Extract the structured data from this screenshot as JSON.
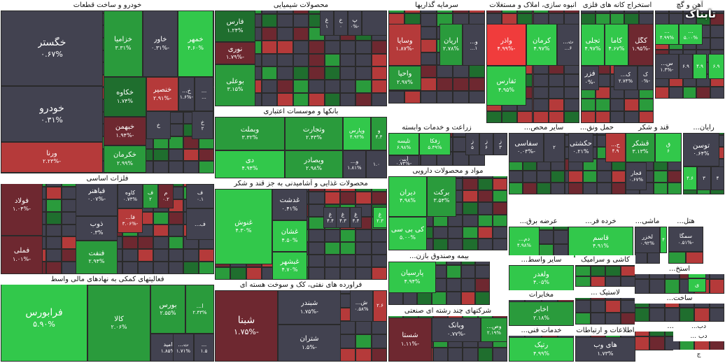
{
  "logo_text": "تابناک",
  "colors": {
    "dk": "#424250",
    "lg": "#32c84b",
    "mg": "#2a9b3c",
    "dg": "#1f6e2e",
    "lr": "#b53a3a",
    "dr": "#6e2830",
    "br": "#f03c3c"
  },
  "sectors": [
    {
      "name": "خودرو و ساخت قطعات",
      "tiles": [
        {
          "n": "خگستر",
          "p": "۰.۶۷%",
          "c": "dk",
          "s": "L"
        },
        {
          "n": "خودرو",
          "p": "۰.۳۱%",
          "c": "dk",
          "s": "L"
        },
        {
          "n": "ورنا",
          "p": "-۲.۲۳%",
          "c": "lr",
          "s": "S"
        },
        {
          "n": "خزامیا",
          "p": "۳.۳۱%",
          "c": "mg",
          "s": "S"
        },
        {
          "n": "خاور",
          "p": "-۰.۳۱%",
          "c": "dk",
          "s": "S"
        },
        {
          "n": "خمهر",
          "p": "۴.۶۰%",
          "c": "lg",
          "s": "S"
        },
        {
          "n": "خکاوه",
          "p": "۱.۷۴%",
          "c": "dg",
          "s": "S"
        },
        {
          "n": "خنصیر",
          "p": "-۲.۹۱%",
          "c": "lr",
          "s": "S"
        },
        {
          "n": "خ...",
          "p": "-۱.۶%",
          "c": "dk",
          "s": "XS"
        },
        {
          "n": "...",
          "p": "...",
          "c": "dk",
          "s": "XS"
        },
        {
          "n": "خبهمن",
          "p": "-۱.۹۴%",
          "c": "dr",
          "s": "S"
        },
        {
          "n": "خ",
          "p": "",
          "c": "dk",
          "s": "XS"
        },
        {
          "n": "خ",
          "p": "۲",
          "c": "dk",
          "s": "XS"
        },
        {
          "n": "خکرمان",
          "p": "۲.۹۹%",
          "c": "mg",
          "s": "S"
        }
      ]
    },
    {
      "name": "محصولات شیمیایی",
      "tiles": [
        {
          "n": "فارس",
          "p": "۱.۲۴%",
          "c": "dg",
          "s": "S"
        },
        {
          "n": "نوری",
          "p": "-۱.۷۹%",
          "c": "dr",
          "s": "S"
        },
        {
          "n": "بوعلی",
          "p": "۳.۱۵%",
          "c": "mg",
          "s": "S"
        },
        {
          "n": "پ",
          "p": "-۰%",
          "c": "dk",
          "s": "XS"
        },
        {
          "n": "خ",
          "p": "۰",
          "c": "dk",
          "s": "XS"
        },
        {
          "n": "غ",
          "p": "۱",
          "c": "dk",
          "s": "XS"
        },
        {
          "n": "",
          "p": "",
          "c": "dk",
          "s": "XS"
        }
      ]
    },
    {
      "name": "سرمایه گذاریها",
      "tiles": [
        {
          "n": "وسایا",
          "p": "-۱.۸۷%",
          "c": "lr",
          "s": "S"
        },
        {
          "n": "آریان",
          "p": "۲.۷۸%",
          "c": "mg",
          "s": "S"
        },
        {
          "n": "و...",
          "p": "۱...",
          "c": "dk",
          "s": "XS"
        },
        {
          "n": "واحیا",
          "p": "۲.۹۷%",
          "c": "mg",
          "s": "S"
        }
      ]
    },
    {
      "name": "انبوه سازی، املاک و مستغلات",
      "tiles": [
        {
          "n": "واذر",
          "p": "-۴.۹۹%",
          "c": "br",
          "s": "S"
        },
        {
          "n": "کرمان",
          "p": "۴.۹۷%",
          "c": "lg",
          "s": "S"
        },
        {
          "n": "ث...",
          "p": "۶...",
          "c": "dk",
          "s": "XS"
        },
        {
          "n": "ثفارس",
          "p": "۴.۹۵%",
          "c": "lg",
          "s": "S"
        }
      ]
    },
    {
      "name": "استخراج کانه های فلزی",
      "tiles": [
        {
          "n": "تجلی",
          "p": "۴.۹۷%",
          "c": "lg",
          "s": "S"
        },
        {
          "n": "کاما",
          "p": "۴.۶۷%",
          "c": "lg",
          "s": "S"
        },
        {
          "n": "کگل",
          "p": "-۱.۹۵%",
          "c": "dr",
          "s": "S"
        },
        {
          "n": "فزر",
          "p": "-۰%",
          "c": "dk",
          "s": "S"
        },
        {
          "n": "ک...",
          "p": "۲.۷۴%",
          "c": "dk",
          "s": "XS"
        },
        {
          "n": "ک",
          "p": "-۰%",
          "c": "dk",
          "s": "XS"
        }
      ]
    },
    {
      "name": "آهن و گچ",
      "tiles": [
        {
          "n": "...",
          "p": "۴.۹۹%",
          "c": "lg",
          "s": "XS"
        },
        {
          "n": "...",
          "p": "۵.۰۰%",
          "c": "lg",
          "s": "XS"
        },
        {
          "n": "س...",
          "p": "-۱.۳%",
          "c": "dk",
          "s": "XS"
        },
        {
          "n": "",
          "p": "۶.۹",
          "c": "dk",
          "s": "XS"
        },
        {
          "n": "",
          "p": "۴.۹",
          "c": "lg",
          "s": "XS"
        },
        {
          "n": "",
          "p": "۶.۹",
          "c": "lg",
          "s": "XS"
        }
      ]
    },
    {
      "name": "فلزات اساسی",
      "tiles": [
        {
          "n": "فولاد",
          "p": "-۱.۰۴%",
          "c": "dr",
          "s": "S"
        },
        {
          "n": "فملی",
          "p": "-۱.۰۱%",
          "c": "dr",
          "s": "S"
        },
        {
          "n": "فباهنر",
          "p": "-۰.۰۷%",
          "c": "dk",
          "s": "S"
        },
        {
          "n": "ذوب",
          "p": "۰.۳%",
          "c": "dk",
          "s": "S"
        },
        {
          "n": "فنفت",
          "p": "۲.۹۴%",
          "c": "mg",
          "s": "S"
        },
        {
          "n": "کاوه",
          "p": "۰.۷۳%",
          "c": "dk",
          "s": "XS"
        },
        {
          "n": "ف",
          "p": "۲",
          "c": "mg",
          "s": "XS"
        },
        {
          "n": "م",
          "p": "۰.۲",
          "c": "dr",
          "s": "XS"
        },
        {
          "n": "ف",
          "p": "۰.۱",
          "c": "dk",
          "s": "XS"
        },
        {
          "n": "فا...",
          "p": "-۳.۰۶%",
          "c": "lr",
          "s": "XS"
        },
        {
          "n": "ف...",
          "p": "",
          "c": "dk",
          "s": "XS"
        }
      ]
    },
    {
      "name": "بانکها و موسسات اعتباری",
      "tiles": [
        {
          "n": "وبملت",
          "p": "۳.۳۲%",
          "c": "mg",
          "s": "S"
        },
        {
          "n": "وتجارت",
          "p": "۲.۴۳%",
          "c": "mg",
          "s": "S"
        },
        {
          "n": "وپارس",
          "p": "۴.۹۲%",
          "c": "lg",
          "s": "XS"
        },
        {
          "n": "و",
          "p": "۴.۳",
          "c": "mg",
          "s": "XS"
        },
        {
          "n": "دی",
          "p": "۴.۹۴%",
          "c": "lg",
          "s": "S"
        },
        {
          "n": "وبصادر",
          "p": "۲.۹۸%",
          "c": "mg",
          "s": "S"
        },
        {
          "n": "و...",
          "p": "۱.۸۱%",
          "c": "dk",
          "s": "XS"
        },
        {
          "n": "",
          "p": "۱.۰",
          "c": "dk",
          "s": "XS"
        }
      ]
    },
    {
      "name": "زراعت و خدمات وابسته",
      "tiles": [
        {
          "n": "تلیسه",
          "p": "۶.۹۸%",
          "c": "lg",
          "s": "XS"
        },
        {
          "n": "زفکا",
          "p": "۵.۴۹%",
          "c": "lg",
          "s": "XS"
        },
        {
          "n": "آبین",
          "p": "-۰.۷۴%",
          "c": "dk",
          "s": "XS"
        },
        {
          "n": "ز",
          "p": "۵",
          "c": "dk",
          "s": "XS"
        },
        {
          "n": "ز",
          "p": "۶",
          "c": "dk",
          "s": "XS"
        },
        {
          "n": "ز",
          "p": "۳",
          "c": "dk",
          "s": "XS"
        }
      ]
    },
    {
      "name": "سایر محص...",
      "tiles": [
        {
          "n": "سفاسی",
          "p": "-۰.۰۳%",
          "c": "dk",
          "s": "S"
        },
        {
          "n": "",
          "p": "۲",
          "c": "dk",
          "s": "XS"
        }
      ]
    },
    {
      "name": "حمل ونق...",
      "tiles": [
        {
          "n": "حکشتی",
          "p": "۰.۲۱%",
          "c": "dk",
          "s": "S"
        },
        {
          "n": "ح...",
          "p": "۴.۹",
          "c": "lr",
          "s": "XS"
        }
      ]
    },
    {
      "name": "قند و شکر",
      "tiles": [
        {
          "n": "قشکر",
          "p": "۳.۱۳%",
          "c": "mg",
          "s": "S"
        },
        {
          "n": "ق",
          "p": "۶",
          "c": "lg",
          "s": "XS"
        },
        {
          "n": "قجار",
          "p": "۰.۶۷%",
          "c": "dk",
          "s": "XS"
        }
      ]
    },
    {
      "name": "رایان...",
      "tiles": [
        {
          "n": "توسن",
          "p": "۰.۶۴%",
          "c": "dk",
          "s": "S"
        },
        {
          "n": "",
          "p": "۴.۶",
          "c": "lg",
          "s": "XS"
        },
        {
          "n": "",
          "p": "۳",
          "c": "dk",
          "s": "XS"
        },
        {
          "n": "",
          "p": "۴",
          "c": "dk",
          "s": "XS"
        }
      ]
    },
    {
      "name": "محصولات غذایی و آشامیدنی به جز قند و شکر",
      "tiles": [
        {
          "n": "غنوش",
          "p": "۴.۳۰%",
          "c": "lg",
          "s": "S"
        },
        {
          "n": "غدشت",
          "p": "۰.۴۱%",
          "c": "dk",
          "s": "S"
        },
        {
          "n": "غشان",
          "p": "۴.۵۰%",
          "c": "lg",
          "s": "S"
        },
        {
          "n": "غبشهر",
          "p": "۴.۷۰%",
          "c": "lg",
          "s": "S"
        },
        {
          "n": "غ",
          "p": "۴.۴",
          "c": "dk",
          "s": "XS"
        },
        {
          "n": "غ",
          "p": "۴.۳",
          "c": "dk",
          "s": "XS"
        },
        {
          "n": "غ",
          "p": "۴.۳",
          "c": "dk",
          "s": "XS"
        },
        {
          "n": "غ",
          "p": "۲.۳",
          "c": "lg",
          "s": "XS"
        }
      ]
    },
    {
      "name": "مواد و محصولات دارویی",
      "tiles": [
        {
          "n": "دیران",
          "p": "۴.۹۸%",
          "c": "lg",
          "s": "S"
        },
        {
          "n": "برکت",
          "p": "۳.۵۴%",
          "c": "mg",
          "s": "S"
        },
        {
          "n": "کی بی سی",
          "p": "۵.۰۰%",
          "c": "lg",
          "s": "S"
        }
      ]
    },
    {
      "name": "عرضه برق...",
      "tiles": [
        {
          "n": "دم...",
          "p": "۴.۹۸%",
          "c": "lg",
          "s": "XS"
        }
      ]
    },
    {
      "name": "خرده فر...",
      "tiles": [
        {
          "n": "قاسم",
          "p": "۴.۹۱%",
          "c": "lg",
          "s": "S"
        }
      ]
    },
    {
      "name": "ماشی...",
      "tiles": [
        {
          "n": "لخزر",
          "p": "۰.۹۲%",
          "c": "dk",
          "s": "XS"
        },
        {
          "n": "",
          "p": "۴",
          "c": "lg",
          "s": "XS"
        }
      ]
    },
    {
      "name": "هتل...",
      "tiles": [
        {
          "n": "سمگا",
          "p": "-۰.۵۱%",
          "c": "dk",
          "s": "XS"
        }
      ]
    },
    {
      "name": "فعالیتهای کمکی به نهادهای مالی واسط",
      "tiles": [
        {
          "n": "فرابورس",
          "p": "۵.۹۰%",
          "c": "lg",
          "s": "L"
        },
        {
          "n": "کالا",
          "p": "۲.۰۶%",
          "c": "mg",
          "s": "S"
        },
        {
          "n": "بورس",
          "p": "۲.۵۵%",
          "c": "mg",
          "s": "S"
        },
        {
          "n": "ا...",
          "p": "۲.۴۳%",
          "c": "mg",
          "s": "XS"
        },
        {
          "n": "امید",
          "p": "۱.۸۵%",
          "c": "dk",
          "s": "XS"
        },
        {
          "n": "ت...",
          "p": "۱.۷۱%",
          "c": "dk",
          "s": "XS"
        },
        {
          "n": "...",
          "p": "۱.۵",
          "c": "dk",
          "s": "XS"
        }
      ]
    },
    {
      "name": "فراورده های نفتی، کک و سوخت هسته ای",
      "tiles": [
        {
          "n": "شبنا",
          "p": "-۱.۷۵%",
          "c": "dr",
          "s": "L"
        },
        {
          "n": "شبندر",
          "p": "-۱.۷۵%",
          "c": "dk",
          "s": "S"
        },
        {
          "n": "شتران",
          "p": "-۱.۵%",
          "c": "dk",
          "s": "S"
        },
        {
          "n": "ش...",
          "p": "۰.۵۸%",
          "c": "dk",
          "s": "XS"
        },
        {
          "n": "",
          "p": "۲.۶",
          "c": "lr",
          "s": "XS"
        }
      ]
    },
    {
      "name": "بیمه وصندوق بازن...",
      "tiles": [
        {
          "n": "پارسیان",
          "p": "۴.۹۴%",
          "c": "lg",
          "s": "S"
        }
      ]
    },
    {
      "name": "سایر واسط...",
      "tiles": [
        {
          "n": "ولغدر",
          "p": "۴.۰۵%",
          "c": "lg",
          "s": "S"
        }
      ]
    },
    {
      "name": "کاشی و سرامیک",
      "tiles": []
    },
    {
      "name": "لاستیک ...",
      "tiles": []
    },
    {
      "name": "استخ...",
      "tiles": [
        {
          "n": "ی",
          "p": "",
          "c": "lg",
          "s": "XS"
        },
        {
          "n": "ی",
          "p": "",
          "c": "lg",
          "s": "XS"
        }
      ]
    },
    {
      "name": "شرکتهای چند رشته ای صنعتی",
      "tiles": [
        {
          "n": "شستا",
          "p": "-۱.۱۱%",
          "c": "dr",
          "s": "S"
        },
        {
          "n": "وبانک",
          "p": "-۰.۷۷%",
          "c": "dk",
          "s": "S"
        },
        {
          "n": "وص...",
          "p": "۲.۱۹%",
          "c": "mg",
          "s": "XS"
        }
      ]
    },
    {
      "name": "مخابرات",
      "tiles": [
        {
          "n": "اخابر",
          "p": "۲.۱۸%",
          "c": "mg",
          "s": "S"
        }
      ]
    },
    {
      "name": "خدمات فنی...",
      "tiles": [
        {
          "n": "رتیک",
          "p": "۴.۹۹%",
          "c": "lg",
          "s": "S"
        }
      ]
    },
    {
      "name": "اطلاعات و ارتباطات",
      "tiles": [
        {
          "n": "های وب",
          "p": "۱.۷۳%",
          "c": "dk",
          "s": "S"
        }
      ]
    },
    {
      "name": "ساخت...",
      "tiles": []
    },
    {
      "name": "محصو...",
      "tiles": []
    },
    {
      "name": "دب...",
      "tiles": []
    },
    {
      "name": "دب ...",
      "tiles": []
    },
    {
      "name": "ج",
      "tiles": [
        {
          "n": "تج",
          "p": "",
          "c": "dk",
          "s": "XS"
        }
      ]
    }
  ]
}
